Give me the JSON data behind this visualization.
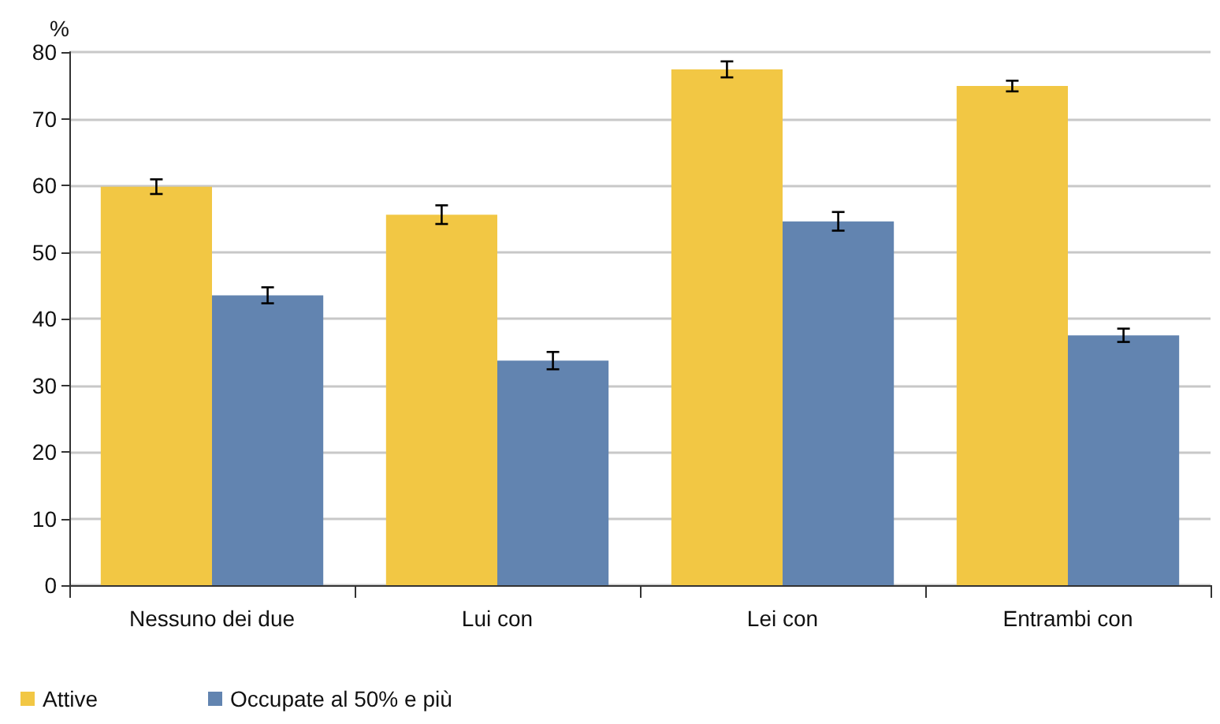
{
  "chart_data": {
    "type": "bar",
    "ylabel": "%",
    "categories": [
      "Nessuno dei due",
      "Lui con",
      "Lei con",
      "Entrambi con"
    ],
    "series": [
      {
        "name": "Attive",
        "color": "#f2c744",
        "values": [
          59.8,
          55.6,
          77.4,
          74.9
        ],
        "errors": [
          1.1,
          1.4,
          1.2,
          0.8
        ]
      },
      {
        "name": "Occupate al 50% e più",
        "color": "#6284b0",
        "values": [
          43.5,
          33.7,
          54.6,
          37.5
        ],
        "errors": [
          1.2,
          1.3,
          1.4,
          1.0
        ]
      }
    ],
    "ylim": [
      0,
      80
    ],
    "yticks": [
      0,
      10,
      20,
      30,
      40,
      50,
      60,
      70,
      80
    ],
    "grid": "y",
    "legend": "bottom left"
  }
}
